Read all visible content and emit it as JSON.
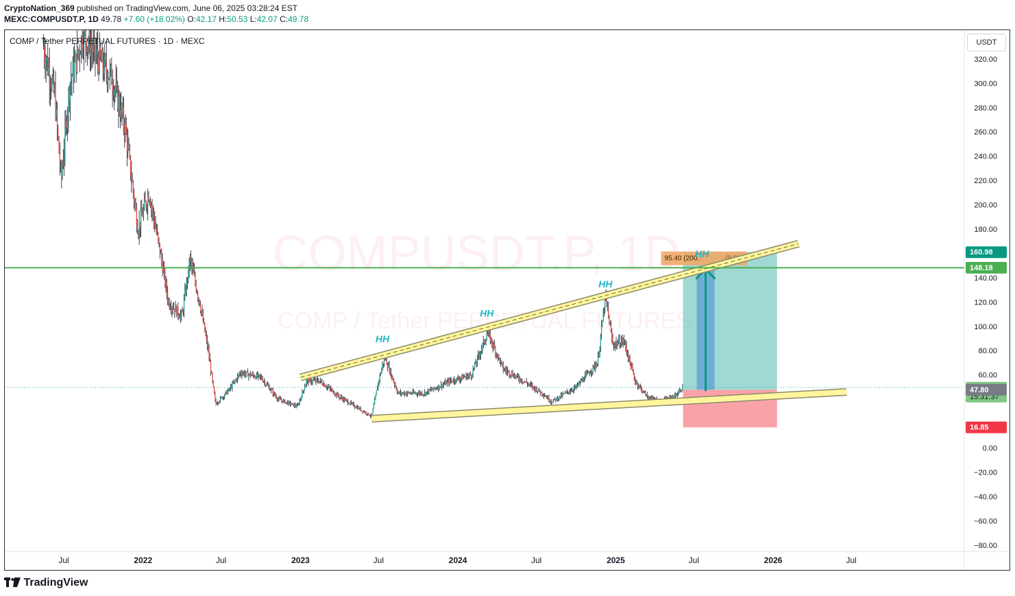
{
  "header": {
    "publisher": "CryptoNation_369",
    "published_text": " published on TradingView.com, June 06, 2025 03:28:24 EST",
    "symbol_line_bold": "MEXC:COMPUSDT.P, 1D",
    "last_price": "49.78",
    "change": "+7.60 (+18.02%)",
    "ohlc": [
      {
        "label": "O:",
        "value": "42.17"
      },
      {
        "label": "H:",
        "value": "50.53"
      },
      {
        "label": "L:",
        "value": "42.07"
      },
      {
        "label": "C:",
        "value": "49.78"
      }
    ]
  },
  "chart_title": "COMP / Tether PERPETUAL FUTURES · 1D · MEXC",
  "currency_button": "USDT",
  "watermark": {
    "symbol": "COMPUSDT.P, 1D",
    "name": "COMP / Tether PERPETUAL FUTURES"
  },
  "footer": {
    "brand": "TradingView"
  },
  "colors": {
    "up": "#26a69a",
    "down": "#ef5350",
    "green_line": "#4caf50",
    "trend_band": "#fff59d",
    "profit_zone": "#80cbc4",
    "loss_zone": "#f78c94",
    "annotation": "#1fb5c9"
  },
  "chart_data": {
    "type": "candlestick",
    "interval": "1D",
    "y_axis": {
      "ticks": [
        320,
        300,
        280,
        260,
        240,
        220,
        200,
        180,
        140,
        120,
        100,
        80,
        60,
        0,
        -20,
        -40,
        -60,
        -80
      ],
      "tick_labels": [
        "320.00",
        "300.00",
        "280.00",
        "260.00",
        "240.00",
        "220.00",
        "200.00",
        "180.00",
        "140.00",
        "120.00",
        "100.00",
        "80.00",
        "60.00",
        "0.00",
        "−20.00",
        "−40.00",
        "−60.00",
        "−80.00"
      ],
      "range": [
        -90,
        345
      ]
    },
    "x_axis": {
      "ticks": [
        {
          "label": "Jul",
          "date": "2021-07-01"
        },
        {
          "label": "2022",
          "date": "2022-01-01"
        },
        {
          "label": "Jul",
          "date": "2022-07-01"
        },
        {
          "label": "2023",
          "date": "2023-01-01"
        },
        {
          "label": "Jul",
          "date": "2023-07-01"
        },
        {
          "label": "2024",
          "date": "2024-01-01"
        },
        {
          "label": "Jul",
          "date": "2024-07-01"
        },
        {
          "label": "2025",
          "date": "2025-01-01"
        },
        {
          "label": "Jul",
          "date": "2025-07-01"
        },
        {
          "label": "2026",
          "date": "2026-01-01"
        },
        {
          "label": "Jul",
          "date": "2026-07-01"
        }
      ]
    },
    "price_path": [
      {
        "date": "2021-05-15",
        "close": 330
      },
      {
        "date": "2021-06-10",
        "close": 290
      },
      {
        "date": "2021-06-25",
        "close": 220
      },
      {
        "date": "2021-07-15",
        "close": 300
      },
      {
        "date": "2021-08-15",
        "close": 340
      },
      {
        "date": "2021-09-20",
        "close": 320
      },
      {
        "date": "2021-10-20",
        "close": 305
      },
      {
        "date": "2021-11-20",
        "close": 265
      },
      {
        "date": "2021-12-20",
        "close": 180
      },
      {
        "date": "2022-01-15",
        "close": 210
      },
      {
        "date": "2022-02-10",
        "close": 160
      },
      {
        "date": "2022-03-01",
        "close": 120
      },
      {
        "date": "2022-04-01",
        "close": 108
      },
      {
        "date": "2022-04-20",
        "close": 155
      },
      {
        "date": "2022-05-12",
        "close": 120
      },
      {
        "date": "2022-06-01",
        "close": 80
      },
      {
        "date": "2022-06-18",
        "close": 36
      },
      {
        "date": "2022-07-20",
        "close": 48
      },
      {
        "date": "2022-08-15",
        "close": 62
      },
      {
        "date": "2022-10-01",
        "close": 58
      },
      {
        "date": "2022-11-10",
        "close": 40
      },
      {
        "date": "2022-12-25",
        "close": 34
      },
      {
        "date": "2023-01-15",
        "close": 55
      },
      {
        "date": "2023-02-15",
        "close": 55
      },
      {
        "date": "2023-04-01",
        "close": 42
      },
      {
        "date": "2023-06-15",
        "close": 26
      },
      {
        "date": "2023-07-01",
        "close": 55
      },
      {
        "date": "2023-07-15",
        "close": 75
      },
      {
        "date": "2023-08-15",
        "close": 45
      },
      {
        "date": "2023-10-15",
        "close": 45
      },
      {
        "date": "2023-12-15",
        "close": 55
      },
      {
        "date": "2024-02-01",
        "close": 60
      },
      {
        "date": "2024-03-10",
        "close": 95
      },
      {
        "date": "2024-04-15",
        "close": 65
      },
      {
        "date": "2024-06-01",
        "close": 55
      },
      {
        "date": "2024-07-15",
        "close": 45
      },
      {
        "date": "2024-08-05",
        "close": 38
      },
      {
        "date": "2024-10-01",
        "close": 50
      },
      {
        "date": "2024-11-20",
        "close": 70
      },
      {
        "date": "2024-12-08",
        "close": 125
      },
      {
        "date": "2024-12-25",
        "close": 85
      },
      {
        "date": "2025-01-20",
        "close": 88
      },
      {
        "date": "2025-02-15",
        "close": 55
      },
      {
        "date": "2025-03-15",
        "close": 42
      },
      {
        "date": "2025-04-15",
        "close": 38
      },
      {
        "date": "2025-05-20",
        "close": 43
      },
      {
        "date": "2025-06-06",
        "close": 49.78
      }
    ],
    "annotations": [
      {
        "text": "HH",
        "date": "2023-07-10",
        "price": 87
      },
      {
        "text": "HH",
        "date": "2024-03-08",
        "price": 108
      },
      {
        "text": "HH",
        "date": "2024-12-08",
        "price": 132
      },
      {
        "text": "HH",
        "date": "2025-07-20",
        "price": 157
      }
    ],
    "trendlines": [
      {
        "name": "upper-channel",
        "from": {
          "date": "2023-01-01",
          "price": 58
        },
        "to": {
          "date": "2026-03-01",
          "price": 168
        }
      },
      {
        "name": "lower-channel",
        "from": {
          "date": "2023-06-15",
          "price": 24
        },
        "to": {
          "date": "2026-06-20",
          "price": 46
        }
      }
    ],
    "horizontal_line": {
      "price": 148.18
    },
    "position": {
      "start": "2025-06-06",
      "end": "2026-01-10",
      "entry": 47.8,
      "target": 160.98,
      "stop": 16.85,
      "label": "95.40 (200.",
      "label_tail": "(9,540"
    },
    "price_labels": [
      {
        "value": "160.98",
        "price": 160.98,
        "bg": "#089981"
      },
      {
        "value": "148.18",
        "price": 148.18,
        "bg": "#4caf50"
      },
      {
        "value": "49.78",
        "price": 49.78,
        "bg": "#81c784",
        "sub": "15:31:37"
      },
      {
        "value": "47.80",
        "price": 47.8,
        "bg": "#787b86"
      },
      {
        "value": "16.85",
        "price": 16.85,
        "bg": "#f23645"
      }
    ]
  }
}
